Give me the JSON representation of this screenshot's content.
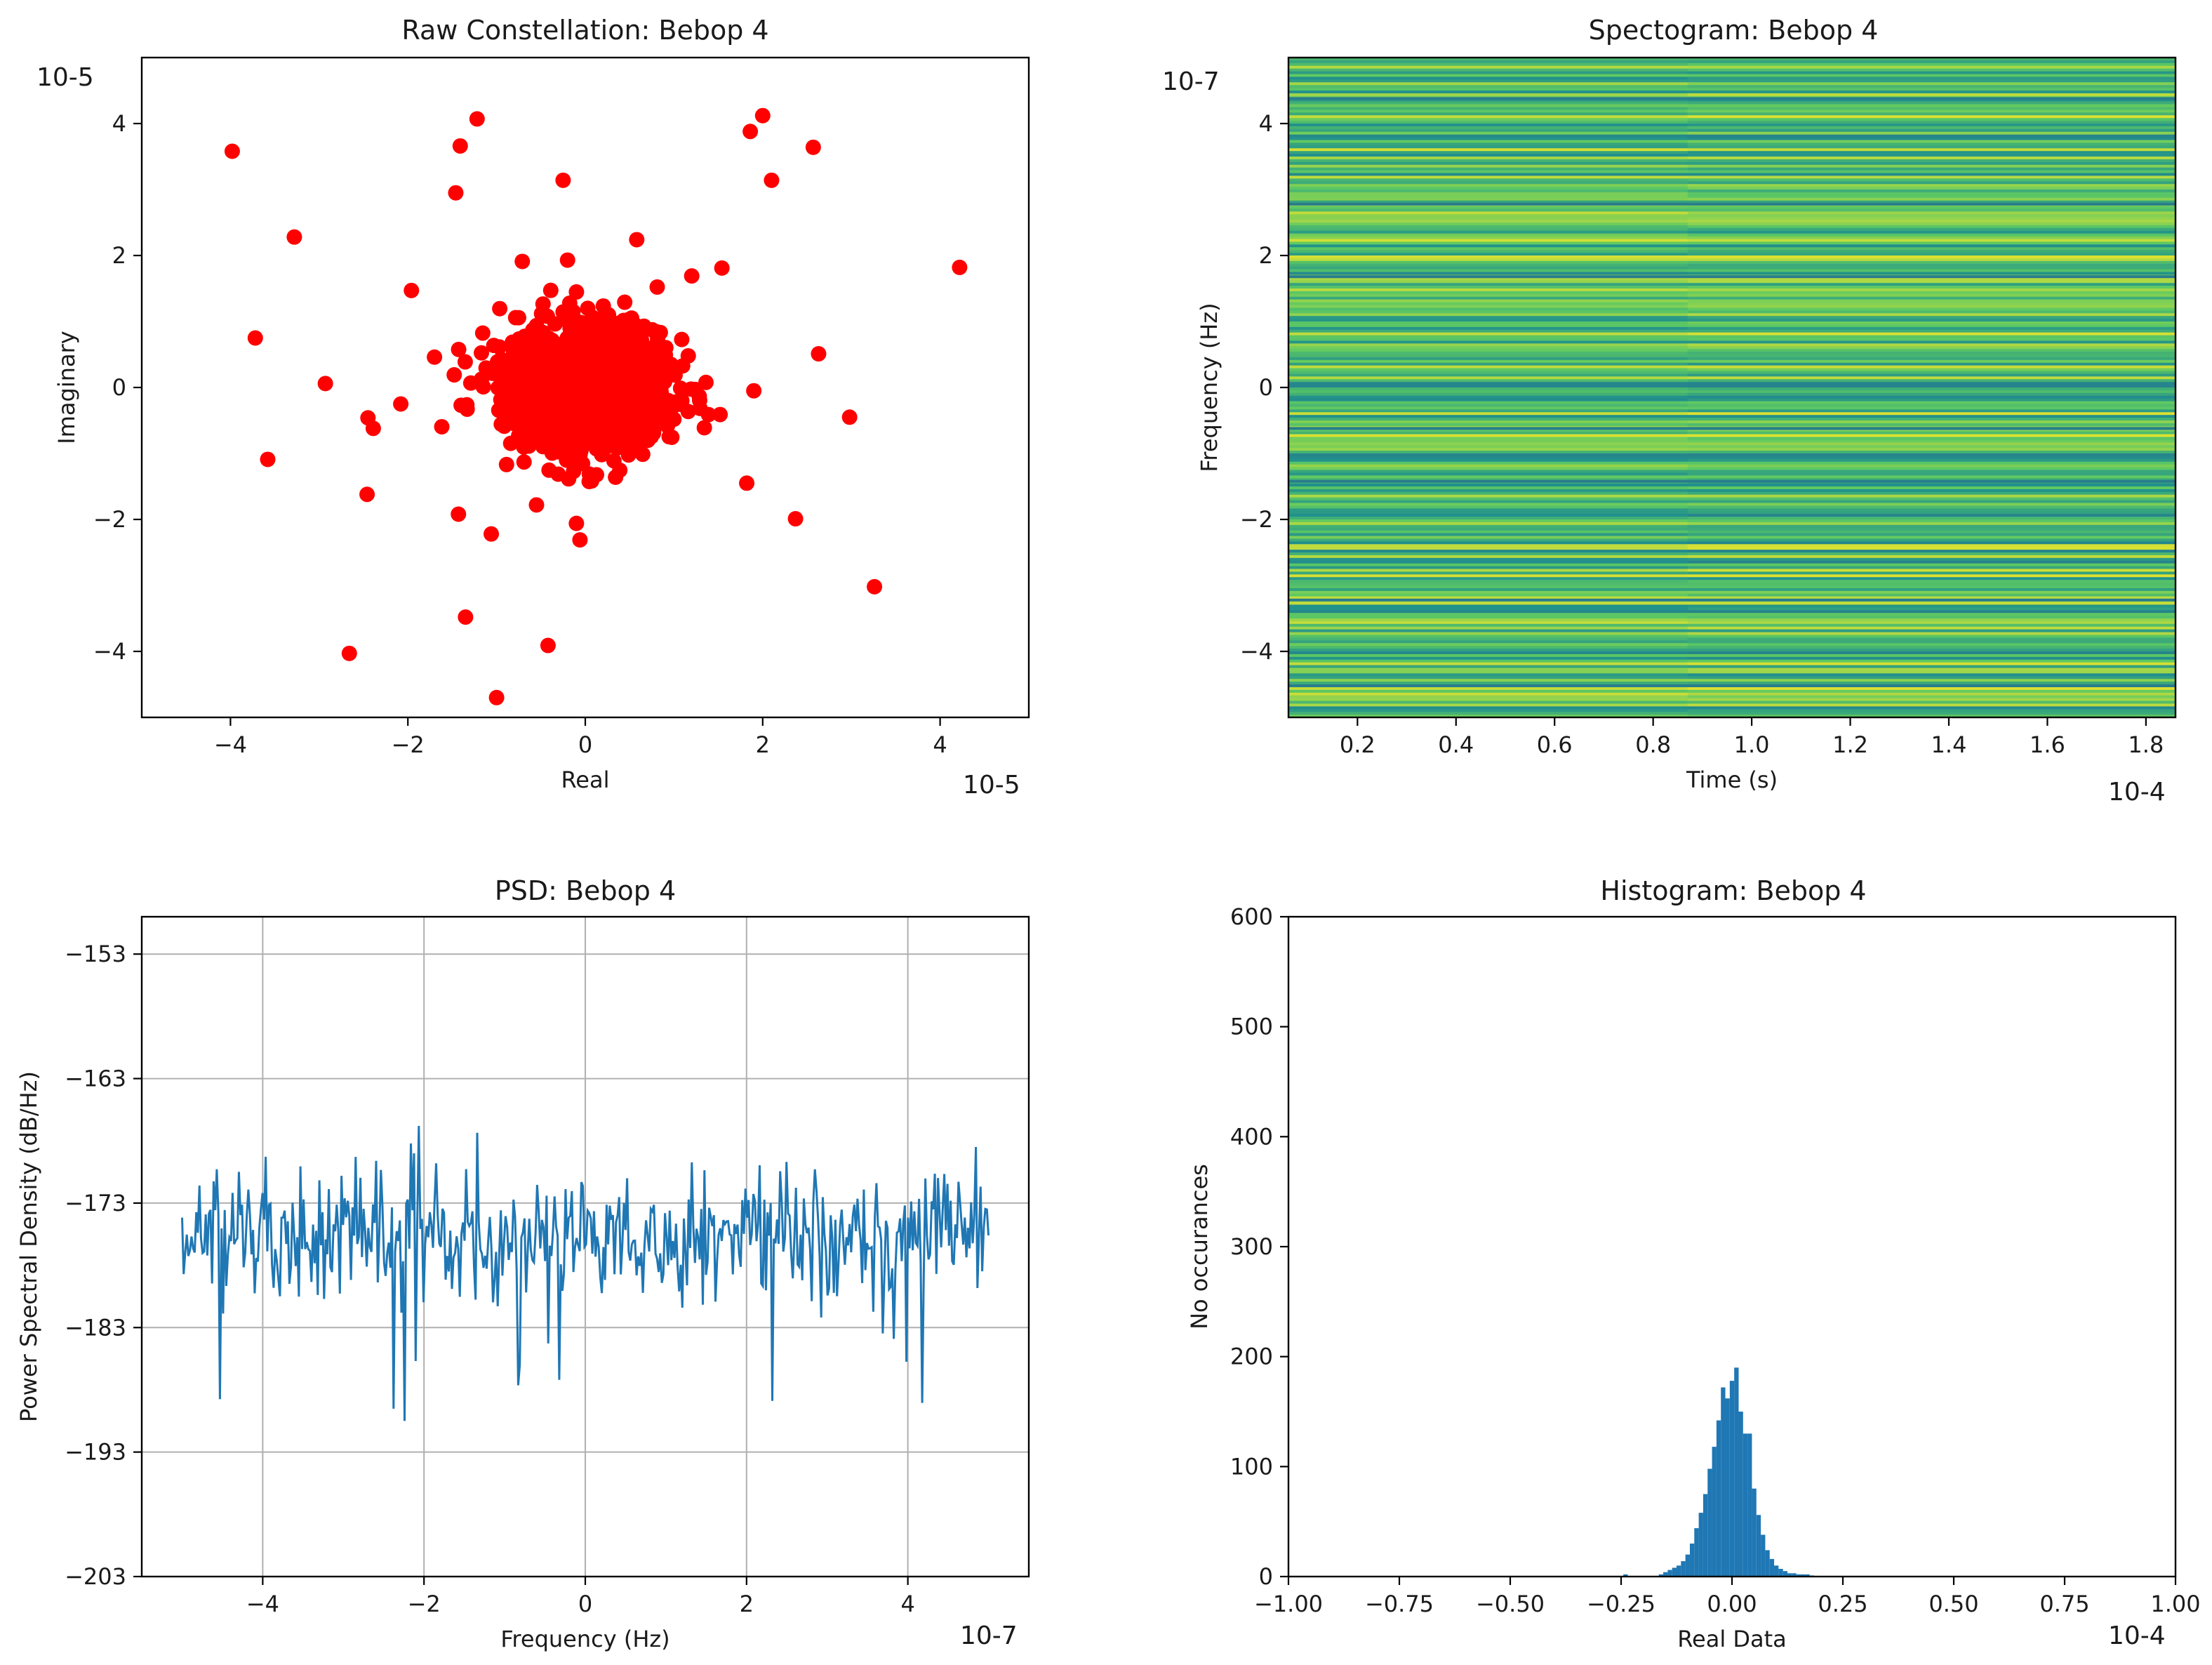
{
  "chart_data": [
    {
      "type": "scatter",
      "title": "Raw Constellation: Bebop 4",
      "xlabel": "Real",
      "ylabel": "Imaginary",
      "x_scale_label": "10-5",
      "y_scale_label": "10-5",
      "xlim": [
        -5.0,
        5.0
      ],
      "ylim": [
        -5.0,
        5.0
      ],
      "xticks": [
        -4,
        -2,
        0,
        2,
        4
      ],
      "yticks": [
        -4,
        -2,
        0,
        2,
        4
      ],
      "grid": false,
      "color": "#ff0000",
      "cluster": {
        "center": [
          0.0,
          0.0
        ],
        "std_real": 0.45,
        "std_imag": 0.45,
        "count": 1400
      },
      "outliers": [
        [
          -3.98,
          3.58
        ],
        [
          -1.22,
          4.07
        ],
        [
          -1.41,
          3.66
        ],
        [
          -1.46,
          2.95
        ],
        [
          -0.25,
          3.14
        ],
        [
          1.86,
          3.88
        ],
        [
          2.0,
          4.12
        ],
        [
          2.1,
          3.14
        ],
        [
          2.57,
          3.64
        ],
        [
          4.22,
          1.82
        ],
        [
          -3.28,
          2.28
        ],
        [
          -3.72,
          0.75
        ],
        [
          -1.96,
          1.47
        ],
        [
          -2.93,
          0.06
        ],
        [
          -2.08,
          -0.25
        ],
        [
          -2.45,
          -0.46
        ],
        [
          -2.39,
          -0.62
        ],
        [
          -3.58,
          -1.09
        ],
        [
          -2.46,
          -1.62
        ],
        [
          -1.43,
          -1.92
        ],
        [
          -1.06,
          -2.22
        ],
        [
          -1.35,
          -3.48
        ],
        [
          -2.66,
          -4.03
        ],
        [
          -1.0,
          -4.7
        ],
        [
          -0.42,
          -3.91
        ],
        [
          2.37,
          -1.99
        ],
        [
          3.26,
          -3.02
        ],
        [
          2.98,
          -0.45
        ],
        [
          2.63,
          0.51
        ],
        [
          1.82,
          -1.45
        ],
        [
          0.58,
          2.24
        ],
        [
          -0.71,
          1.91
        ],
        [
          -0.2,
          1.93
        ],
        [
          1.54,
          1.81
        ],
        [
          1.2,
          1.69
        ],
        [
          -0.1,
          -2.06
        ],
        [
          -0.06,
          -2.31
        ],
        [
          -0.55,
          -1.78
        ],
        [
          -1.7,
          0.46
        ],
        [
          1.9,
          -0.05
        ]
      ]
    },
    {
      "type": "heatmap",
      "title": "Spectogram: Bebop 4",
      "xlabel": "Time (s)",
      "ylabel": "Frequency (Hz)",
      "x_scale_label": "10-4",
      "y_scale_label": "10-7",
      "xlim": [
        0.06,
        1.86
      ],
      "ylim": [
        -5.0,
        5.0
      ],
      "xticks": [
        0.2,
        0.4,
        0.6,
        0.8,
        1.0,
        1.2,
        1.4,
        1.6,
        1.8
      ],
      "yticks": [
        -4,
        -2,
        0,
        2,
        4
      ],
      "colormap": "viridis",
      "value_range": [
        0.45,
        0.95
      ],
      "rows": 240
    },
    {
      "type": "line",
      "title": "PSD: Bebop 4",
      "xlabel": "Frequency (Hz)",
      "ylabel": "Power Spectral Density (dB/Hz)",
      "x_scale_label": "10-7",
      "xlim": [
        -5.5,
        5.5
      ],
      "ylim": [
        -203,
        -150
      ],
      "xticks": [
        -4,
        -2,
        0,
        2,
        4
      ],
      "yticks": [
        -203,
        -193,
        -183,
        -173,
        -163,
        -153
      ],
      "grid": true,
      "color": "#1f77b4",
      "series": [
        {
          "name": "PSD",
          "x_range": [
            -5.0,
            5.0
          ],
          "points": 512,
          "mean": -175.5,
          "min": -190.5,
          "max": -166.8
        }
      ]
    },
    {
      "type": "bar",
      "title": "Histogram: Bebop 4",
      "xlabel": "Real Data",
      "ylabel": "No occurances",
      "x_scale_label": "10-4",
      "xlim": [
        -1.0,
        1.0
      ],
      "ylim": [
        0,
        600
      ],
      "xticks": [
        "−1.00",
        "−0.75",
        "−0.50",
        "−0.25",
        "0.00",
        "0.25",
        "0.50",
        "0.75",
        "1.00"
      ],
      "yticks": [
        0,
        100,
        200,
        300,
        400,
        500,
        600
      ],
      "color": "#1f77b4",
      "bin_width": 0.01,
      "bins": [
        {
          "x": -0.24,
          "value": 2
        },
        {
          "x": -0.16,
          "value": 2
        },
        {
          "x": -0.15,
          "value": 4
        },
        {
          "x": -0.14,
          "value": 6
        },
        {
          "x": -0.13,
          "value": 8
        },
        {
          "x": -0.12,
          "value": 10
        },
        {
          "x": -0.11,
          "value": 14
        },
        {
          "x": -0.1,
          "value": 20
        },
        {
          "x": -0.09,
          "value": 30
        },
        {
          "x": -0.08,
          "value": 44
        },
        {
          "x": -0.07,
          "value": 58
        },
        {
          "x": -0.06,
          "value": 75
        },
        {
          "x": -0.05,
          "value": 98
        },
        {
          "x": -0.04,
          "value": 118
        },
        {
          "x": -0.03,
          "value": 142
        },
        {
          "x": -0.02,
          "value": 172
        },
        {
          "x": -0.01,
          "value": 162
        },
        {
          "x": 0.0,
          "value": 178
        },
        {
          "x": 0.01,
          "value": 190
        },
        {
          "x": 0.02,
          "value": 150
        },
        {
          "x": 0.03,
          "value": 130
        },
        {
          "x": 0.04,
          "value": 130
        },
        {
          "x": 0.05,
          "value": 80
        },
        {
          "x": 0.06,
          "value": 56
        },
        {
          "x": 0.07,
          "value": 38
        },
        {
          "x": 0.08,
          "value": 24
        },
        {
          "x": 0.09,
          "value": 16
        },
        {
          "x": 0.1,
          "value": 10
        },
        {
          "x": 0.11,
          "value": 7
        },
        {
          "x": 0.12,
          "value": 5
        },
        {
          "x": 0.13,
          "value": 3
        },
        {
          "x": 0.14,
          "value": 3
        },
        {
          "x": 0.15,
          "value": 2
        },
        {
          "x": 0.16,
          "value": 2
        },
        {
          "x": 0.17,
          "value": 2
        },
        {
          "x": 0.18,
          "value": 1
        }
      ]
    }
  ]
}
